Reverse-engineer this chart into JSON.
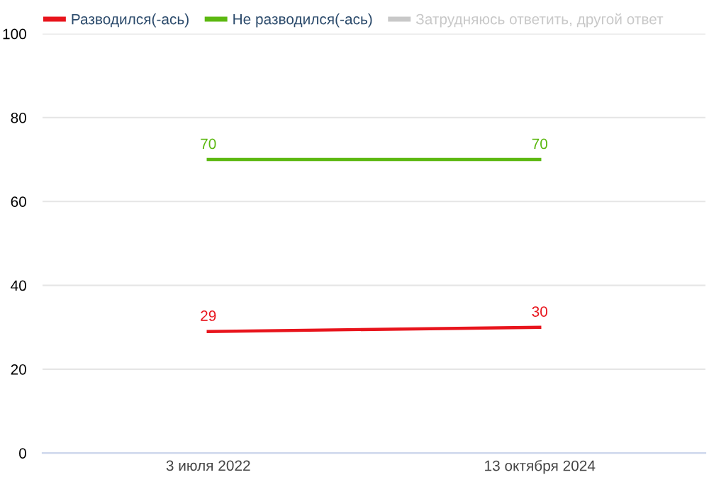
{
  "chart_data": {
    "type": "line",
    "categories": [
      "3 июля 2022",
      "13 октября 2024"
    ],
    "series": [
      {
        "name": "Разводился(-ась)",
        "color": "#e8141c",
        "values": [
          29,
          30
        ]
      },
      {
        "name": "Не разводился(-ась)",
        "color": "#5cb811",
        "values": [
          70,
          70
        ]
      },
      {
        "name": "Затрудняюсь ответить, другой ответ",
        "color": "#c8c8c8",
        "values": [
          null,
          null
        ]
      }
    ],
    "ylim": [
      0,
      100
    ],
    "yticks": [
      0,
      20,
      40,
      60,
      80,
      100
    ],
    "grid": "y",
    "legend": "top",
    "data_labels": true,
    "marker": "none",
    "line_style": "solid"
  }
}
